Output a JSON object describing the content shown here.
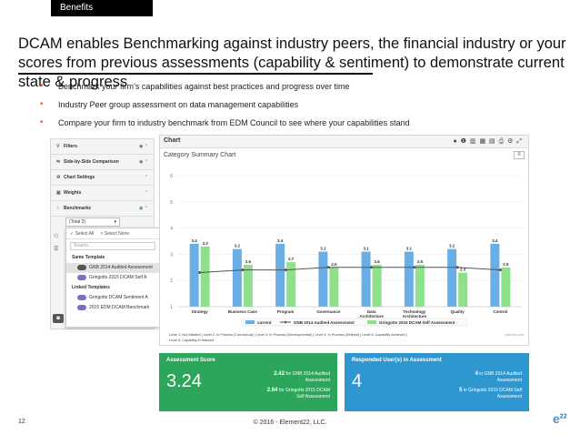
{
  "slide": {
    "tab": "Benefits",
    "title": "DCAM enables Benchmarking against industry peers, the financial industry or your scores from previous assessments (capability & sentiment) to demonstrate current state & progress",
    "bullets": [
      "Benchmark your firm’s capabilities against best practices and progress over time",
      "Industry Peer group assessment on data management capabilities",
      "Compare your firm to industry benchmark from EDM Council to see where your capabilities stand"
    ],
    "page_number": "12",
    "footer": "© 2016 - Element22, LLC.",
    "logo_text": "e",
    "logo_sup": "22",
    "bullet_color": "#e0633a"
  },
  "sidebar": {
    "items": [
      {
        "label": "Filters",
        "icon": "filter-icon"
      },
      {
        "label": "Side-by-Side Comparison",
        "icon": "compare-icon"
      },
      {
        "label": "Chart Settings",
        "icon": "settings-icon"
      },
      {
        "label": "Weights",
        "icon": "weights-icon"
      },
      {
        "label": "Benchmarks",
        "icon": "benchmark-icon"
      }
    ],
    "benchmark_select": "(Total 2)"
  },
  "dropdown": {
    "select_all": "✓ Select All",
    "select_none": "× Select None",
    "search_placeholder": "Search...",
    "groups": [
      {
        "label": "Same Template",
        "items": [
          "GNB 2014 Audited Assessment",
          "Gringotts 2015 DCAM Self A"
        ]
      },
      {
        "label": "Linked Templates",
        "items": [
          "Gringotts DCAM Sentiment A",
          "2015 EDM DCAM Benchmark"
        ]
      }
    ]
  },
  "chart_panel": {
    "header": "Chart",
    "subtitle": "Category Summary Chart",
    "menu": "≡",
    "footnote": "Level 1: Not Initiated | Level 2: In Process (Conceptual) | Level 3: In Process (Developmental) | Level 4: In Process (Defined) | Level 5: Capability Achieved | Level 6: Capability Enhanced",
    "credit": "jsdevelo.com"
  },
  "chart_data": {
    "type": "bar",
    "categories": [
      "Strategy",
      "Business Case",
      "Program",
      "Governance",
      "Data Architecture",
      "Technology Architecture",
      "Quality",
      "Control"
    ],
    "series": [
      {
        "name": "current",
        "kind": "bar",
        "color": "#6aaee6",
        "values": [
          3.4,
          3.2,
          3.4,
          3.1,
          3.1,
          3.1,
          3.2,
          3.4
        ]
      },
      {
        "name": "GNB 2014 Audited Assessment",
        "kind": "line",
        "color": "#555555",
        "values": [
          2.3,
          2.4,
          2.4,
          2.5,
          2.5,
          2.5,
          2.5,
          2.4
        ]
      },
      {
        "name": "Gringotts 2015 DCAM Self Assessment",
        "kind": "bar",
        "color": "#8fe08a",
        "values": [
          3.3,
          2.6,
          2.7,
          2.5,
          2.6,
          2.6,
          2.3,
          2.5
        ]
      }
    ],
    "ylim": [
      1,
      6
    ],
    "yticks": [
      1,
      2,
      3,
      4,
      5,
      6
    ],
    "legend_position": "bottom"
  },
  "cards": {
    "assessment": {
      "title": "Assessment Score",
      "value": "3.24",
      "lines": [
        {
          "num": "2.42",
          "text": "for GNB 2014 Audited",
          "text2": "Assessment"
        },
        {
          "num": "2.64",
          "text": "for Gringotts 2015 DCAM",
          "text2": "Self Assessment"
        }
      ],
      "color": "#2ba65a"
    },
    "responded": {
      "title": "Responded User(s) in Assessment",
      "value": "4",
      "lines": [
        {
          "num": "4",
          "text": "in GNB 2014 Audited",
          "text2": "Assessment"
        },
        {
          "num": "5",
          "text": "in Gringotts 2015 DCAM Self",
          "text2": "Assessment"
        }
      ],
      "color": "#2f97cf"
    }
  }
}
